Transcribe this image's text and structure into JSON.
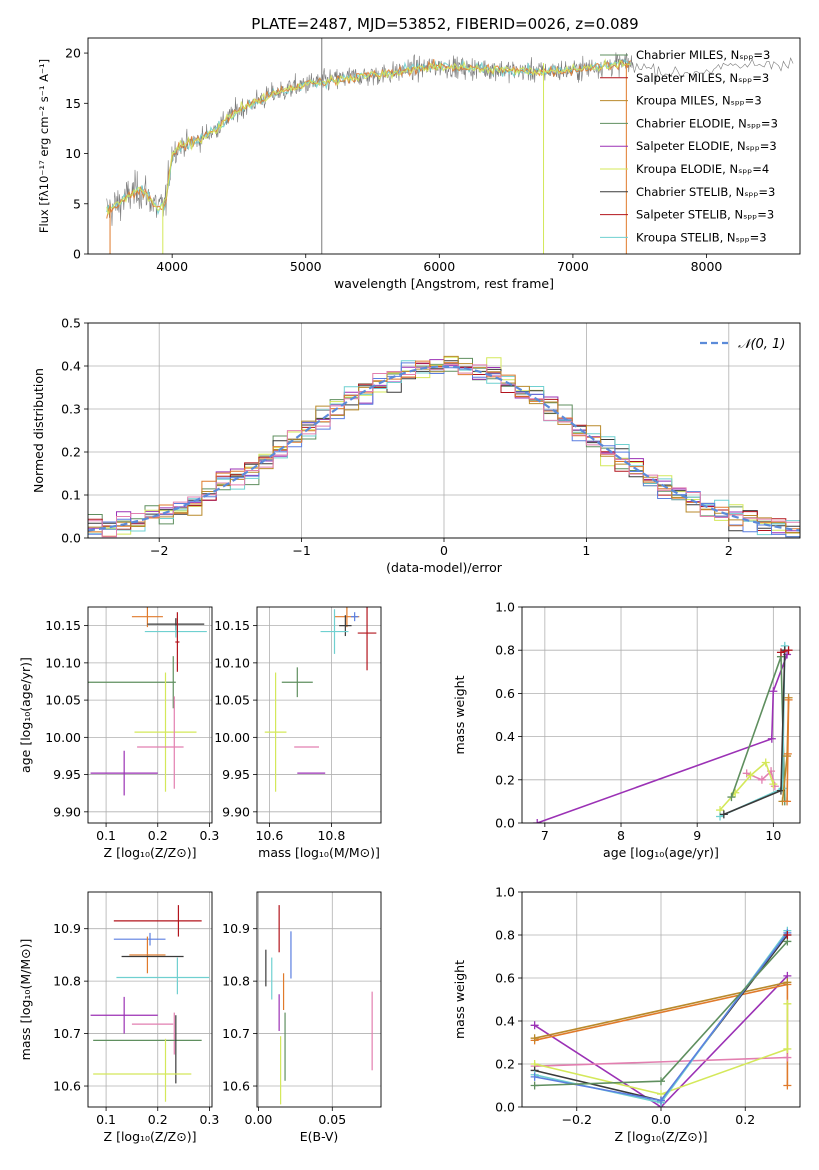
{
  "figure": {
    "title": "PLATE=2487, MJD=53852, FIBERID=0026, z=0.089"
  },
  "model_colors": [
    "#5f8f5f",
    "#9b31b5",
    "#d4e85a",
    "#3a3a3a",
    "#b2141c",
    "#6fd0d0",
    "#5b7fe0",
    "#e07a2b",
    "#b98a2b",
    "#e27fb0"
  ],
  "chart_data": [
    {
      "id": "spectrum",
      "type": "line",
      "xlabel": "wavelength [Angstrom, rest frame]",
      "ylabel": "Flux [fλ10⁻¹⁷ erg cm⁻² s⁻¹ A⁻¹]",
      "xlim": [
        3370,
        8700
      ],
      "ylim": [
        0,
        21.5
      ],
      "xticks": [
        "4000",
        "5000",
        "6000",
        "7000",
        "8000"
      ],
      "yticks": [
        "0",
        "5",
        "10",
        "15",
        "20"
      ],
      "grid": false,
      "legend_position": "top-right",
      "series": [
        {
          "name": "Chabrier MILES, Nₛₚₚ=3",
          "color": "#5f8f5f"
        },
        {
          "name": "Salpeter MILES, Nₛₚₚ=3",
          "color": "#b2141c"
        },
        {
          "name": "Kroupa MILES, Nₛₚₚ=3",
          "color": "#b98a2b"
        },
        {
          "name": "Chabrier ELODIE, Nₛₚₚ=3",
          "color": "#5f8f5f"
        },
        {
          "name": "Salpeter ELODIE, Nₛₚₚ=3",
          "color": "#9b31b5"
        },
        {
          "name": "Kroupa ELODIE, Nₛₚₚ=4",
          "color": "#d4e85a"
        },
        {
          "name": "Chabrier STELIB, Nₛₚₚ=3",
          "color": "#3a3a3a"
        },
        {
          "name": "Salpeter STELIB, Nₛₚₚ=3",
          "color": "#b2141c"
        },
        {
          "name": "Kroupa STELIB, Nₛₚₚ=3",
          "color": "#6fd0d0"
        }
      ],
      "continuum": {
        "x": [
          3500,
          3550,
          3600,
          3650,
          3700,
          3750,
          3800,
          3850,
          3900,
          3950,
          4000,
          4050,
          4100,
          4200,
          4300,
          4400,
          4500,
          4600,
          4700,
          4800,
          4900,
          5000,
          5200,
          5400,
          5600,
          5800,
          6000,
          6200,
          6400,
          6600,
          6800,
          7000,
          7200,
          7400,
          7600,
          7800,
          8000,
          8200,
          8400,
          8600
        ],
        "y": [
          4.2,
          4.6,
          5.0,
          5.5,
          6.0,
          6.3,
          6.2,
          5.2,
          4.5,
          5.0,
          10.0,
          10.6,
          10.9,
          11.4,
          12.2,
          13.3,
          14.4,
          15.0,
          15.6,
          16.1,
          16.5,
          16.9,
          17.3,
          17.7,
          17.9,
          18.4,
          18.7,
          18.5,
          18.4,
          18.2,
          18.2,
          18.3,
          18.7,
          19.0,
          18.4,
          17.9,
          18.3,
          18.6,
          18.9,
          19.1
        ]
      },
      "noise_amplitude": 1.4,
      "vertical_spikes_x": [
        5120,
        6780,
        7400
      ]
    },
    {
      "id": "residuals",
      "type": "histogram",
      "xlabel": "(data-model)/error",
      "ylabel": "Normed distribution",
      "xlim": [
        -2.5,
        2.5
      ],
      "ylim": [
        0,
        0.5
      ],
      "xticks": [
        "−2",
        "−1",
        "0",
        "1",
        "2"
      ],
      "yticks": [
        "0.0",
        "0.1",
        "0.2",
        "0.3",
        "0.4",
        "0.5"
      ],
      "grid": true,
      "bin_width": 0.1,
      "legend_position": "top-right",
      "reference_curve": {
        "name": "𝒩(0, 1)",
        "color": "#5b8bd9",
        "style": "dashed"
      },
      "histogram_count": 10,
      "histogram_jitter": 0.035
    },
    {
      "id": "age_vs_Z",
      "type": "errorbar",
      "xlabel": "Z [log₁₀(Z/Z⊙)]",
      "ylabel": "age  [log₁₀(age/yr)]",
      "xlim": [
        0.065,
        0.305
      ],
      "ylim": [
        9.885,
        10.175
      ],
      "xticks": [
        "0.1",
        "0.2",
        "0.3"
      ],
      "yticks": [
        "9.90",
        "9.95",
        "10.00",
        "10.05",
        "10.10",
        "10.15"
      ],
      "grid": true,
      "points": [
        {
          "x": 0.18,
          "y": 10.162,
          "xerr": 0.03,
          "yerr": 0.014,
          "color": "#e07a2b"
        },
        {
          "x": 0.235,
          "y": 10.152,
          "xerr": 0.055,
          "yerr": 0.008,
          "color": "#3a3a3a"
        },
        {
          "x": 0.235,
          "y": 10.142,
          "xerr": 0.06,
          "yerr": 0.008,
          "color": "#6fd0d0"
        },
        {
          "x": 0.238,
          "y": 10.128,
          "xerr": 0.004,
          "yerr": 0.04,
          "color": "#b2141c"
        },
        {
          "x": 0.14,
          "y": 10.074,
          "xerr": 0.095,
          "yerr": 0.002,
          "color": "#5f8f5f"
        },
        {
          "x": 0.23,
          "y": 10.074,
          "xerr": 0.002,
          "yerr": 0.035,
          "color": "#5f8f5f"
        },
        {
          "x": 0.215,
          "y": 10.007,
          "xerr": 0.06,
          "yerr": 0.08,
          "color": "#d4e85a"
        },
        {
          "x": 0.205,
          "y": 9.987,
          "xerr": 0.045,
          "yerr": 0.002,
          "color": "#e27fb0"
        },
        {
          "x": 0.232,
          "y": 9.993,
          "xerr": 0.002,
          "yerr": 0.062,
          "color": "#e27fb0"
        },
        {
          "x": 0.135,
          "y": 9.952,
          "xerr": 0.065,
          "yerr": 0.03,
          "color": "#9b31b5"
        }
      ]
    },
    {
      "id": "age_vs_mass",
      "type": "errorbar",
      "xlabel": "mass [log₁₀(M/M⊙)]",
      "ylabel": "",
      "xlim": [
        10.56,
        10.96
      ],
      "ylim": [
        9.885,
        10.175
      ],
      "xticks": [
        "10.6",
        "10.8"
      ],
      "yticks": [
        "9.90",
        "9.95",
        "10.00",
        "10.05",
        "10.10",
        "10.15"
      ],
      "grid": true,
      "points": [
        {
          "x": 10.85,
          "y": 10.162,
          "xerr": 0.04,
          "yerr": 0.014,
          "color": "#e07a2b"
        },
        {
          "x": 10.875,
          "y": 10.162,
          "xerr": 0.012,
          "yerr": 0.006,
          "color": "#5b7fe0"
        },
        {
          "x": 10.845,
          "y": 10.15,
          "xerr": 0.02,
          "yerr": 0.014,
          "color": "#3a3a3a"
        },
        {
          "x": 10.81,
          "y": 10.142,
          "xerr": 0.045,
          "yerr": 0.03,
          "color": "#6fd0d0"
        },
        {
          "x": 10.915,
          "y": 10.14,
          "xerr": 0.03,
          "yerr": 0.05,
          "color": "#b2141c"
        },
        {
          "x": 10.69,
          "y": 10.074,
          "xerr": 0.05,
          "yerr": 0.02,
          "color": "#5f8f5f"
        },
        {
          "x": 10.62,
          "y": 10.007,
          "xerr": 0.035,
          "yerr": 0.08,
          "color": "#d4e85a"
        },
        {
          "x": 10.72,
          "y": 9.987,
          "xerr": 0.04,
          "yerr": 0.002,
          "color": "#e27fb0"
        },
        {
          "x": 10.735,
          "y": 9.952,
          "xerr": 0.045,
          "yerr": 0.002,
          "color": "#9b31b5"
        }
      ]
    },
    {
      "id": "weight_vs_age",
      "type": "line",
      "xlabel": "age  [log₁₀(age/yr)]",
      "ylabel": "mass weight",
      "xlim": [
        6.7,
        10.35
      ],
      "ylim": [
        0,
        1.0
      ],
      "xticks": [
        "7",
        "8",
        "9",
        "10"
      ],
      "yticks": [
        "0.0",
        "0.2",
        "0.4",
        "0.6",
        "0.8",
        "1.0"
      ],
      "grid": true,
      "series": [
        {
          "color": "#9b31b5",
          "x": [
            6.9,
            9.98,
            10.0,
            10.18
          ],
          "y": [
            0.0,
            0.39,
            0.61,
            0.78
          ]
        },
        {
          "color": "#e27fb0",
          "x": [
            9.65,
            9.85,
            9.97,
            10.02
          ],
          "y": [
            0.23,
            0.2,
            0.24,
            0.17
          ]
        },
        {
          "color": "#d4e85a",
          "x": [
            9.3,
            9.5,
            9.7,
            9.9,
            10.0
          ],
          "y": [
            0.06,
            0.14,
            0.22,
            0.28,
            0.18
          ]
        },
        {
          "color": "#5f8f5f",
          "x": [
            9.45,
            10.1,
            10.15
          ],
          "y": [
            0.12,
            0.77,
            0.1
          ]
        },
        {
          "color": "#6fd0d0",
          "x": [
            9.3,
            10.12,
            10.15
          ],
          "y": [
            0.03,
            0.16,
            0.82
          ]
        },
        {
          "color": "#3a3a3a",
          "x": [
            9.35,
            10.1,
            10.15
          ],
          "y": [
            0.04,
            0.15,
            0.8
          ]
        },
        {
          "color": "#b98a2b",
          "x": [
            10.12,
            10.18,
            10.2
          ],
          "y": [
            0.1,
            0.31,
            0.58
          ]
        },
        {
          "color": "#e07a2b",
          "x": [
            10.18,
            10.19,
            10.2
          ],
          "y": [
            0.1,
            0.32,
            0.57
          ]
        },
        {
          "color": "#b2141c",
          "x": [
            10.1,
            10.2
          ],
          "y": [
            0.79,
            0.8
          ]
        }
      ]
    },
    {
      "id": "mass_vs_Z",
      "type": "errorbar",
      "xlabel": "Z [log₁₀(Z/Z⊙)]",
      "ylabel": "mass [log₁₀(M/M⊙)]",
      "xlim": [
        0.065,
        0.305
      ],
      "ylim": [
        10.56,
        10.97
      ],
      "xticks": [
        "0.1",
        "0.2",
        "0.3"
      ],
      "yticks": [
        "10.6",
        "10.7",
        "10.8",
        "10.9"
      ],
      "grid": true,
      "points": [
        {
          "x": 0.2,
          "y": 10.915,
          "xerr": 0.085,
          "yerr": 0.002,
          "color": "#b2141c"
        },
        {
          "x": 0.24,
          "y": 10.915,
          "xerr": 0.002,
          "yerr": 0.03,
          "color": "#b2141c"
        },
        {
          "x": 0.165,
          "y": 10.88,
          "xerr": 0.05,
          "yerr": 0.002,
          "color": "#5b7fe0"
        },
        {
          "x": 0.185,
          "y": 10.88,
          "xerr": 0.002,
          "yerr": 0.012,
          "color": "#5b7fe0"
        },
        {
          "x": 0.18,
          "y": 10.85,
          "xerr": 0.035,
          "yerr": 0.035,
          "color": "#e07a2b"
        },
        {
          "x": 0.19,
          "y": 10.847,
          "xerr": 0.06,
          "yerr": 0.002,
          "color": "#3a3a3a"
        },
        {
          "x": 0.21,
          "y": 10.807,
          "xerr": 0.09,
          "yerr": 0.002,
          "color": "#6fd0d0"
        },
        {
          "x": 0.238,
          "y": 10.81,
          "xerr": 0.002,
          "yerr": 0.035,
          "color": "#6fd0d0"
        },
        {
          "x": 0.135,
          "y": 10.735,
          "xerr": 0.065,
          "yerr": 0.035,
          "color": "#9b31b5"
        },
        {
          "x": 0.19,
          "y": 10.718,
          "xerr": 0.04,
          "yerr": 0.002,
          "color": "#e27fb0"
        },
        {
          "x": 0.232,
          "y": 10.7,
          "xerr": 0.002,
          "yerr": 0.04,
          "color": "#e27fb0"
        },
        {
          "x": 0.18,
          "y": 10.687,
          "xerr": 0.105,
          "yerr": 0.002,
          "color": "#5f8f5f"
        },
        {
          "x": 0.235,
          "y": 10.67,
          "xerr": 0.002,
          "yerr": 0.065,
          "color": "#3a3a3a"
        },
        {
          "x": 0.17,
          "y": 10.623,
          "xerr": 0.095,
          "yerr": 0.002,
          "color": "#d4e85a"
        },
        {
          "x": 0.215,
          "y": 10.63,
          "xerr": 0.002,
          "yerr": 0.06,
          "color": "#d4e85a"
        }
      ]
    },
    {
      "id": "mass_vs_ebv",
      "type": "errorbar",
      "xlabel": "E(B-V)",
      "ylabel": "",
      "xlim": [
        -0.001,
        0.083
      ],
      "ylim": [
        10.56,
        10.97
      ],
      "xticks": [
        "0.00",
        "0.05"
      ],
      "yticks": [
        "10.6",
        "10.7",
        "10.8",
        "10.9"
      ],
      "grid": true,
      "points": [
        {
          "x": 0.014,
          "y": 10.9,
          "xerr": 0,
          "yerr": 0.045,
          "color": "#b2141c"
        },
        {
          "x": 0.005,
          "y": 10.825,
          "xerr": 0,
          "yerr": 0.035,
          "color": "#3a3a3a"
        },
        {
          "x": 0.022,
          "y": 10.85,
          "xerr": 0,
          "yerr": 0.045,
          "color": "#5b7fe0"
        },
        {
          "x": 0.009,
          "y": 10.805,
          "xerr": 0,
          "yerr": 0.04,
          "color": "#6fd0d0"
        },
        {
          "x": 0.017,
          "y": 10.78,
          "xerr": 0,
          "yerr": 0.035,
          "color": "#e07a2b"
        },
        {
          "x": 0.014,
          "y": 10.74,
          "xerr": 0,
          "yerr": 0.035,
          "color": "#9b31b5"
        },
        {
          "x": 0.018,
          "y": 10.675,
          "xerr": 0,
          "yerr": 0.065,
          "color": "#5f8f5f"
        },
        {
          "x": 0.015,
          "y": 10.63,
          "xerr": 0,
          "yerr": 0.065,
          "color": "#d4e85a"
        },
        {
          "x": 0.077,
          "y": 10.705,
          "xerr": 0,
          "yerr": 0.075,
          "color": "#e27fb0"
        }
      ]
    },
    {
      "id": "weight_vs_Z",
      "type": "line",
      "xlabel": "Z [log₁₀(Z/Z⊙)]",
      "ylabel": "mass weight",
      "xlim": [
        -0.33,
        0.33
      ],
      "ylim": [
        0,
        1.0
      ],
      "xticks": [
        "−0.2",
        "0.0",
        "0.2"
      ],
      "yticks": [
        "0.0",
        "0.2",
        "0.4",
        "0.6",
        "0.8",
        "1.0"
      ],
      "grid": true,
      "series": [
        {
          "color": "#9b31b5",
          "x": [
            -0.3,
            0.0,
            0.3
          ],
          "y": [
            0.38,
            0.0,
            0.61
          ]
        },
        {
          "color": "#e07a2b",
          "x": [
            -0.3,
            0.3,
            0.3
          ],
          "y": [
            0.31,
            0.57,
            0.1
          ]
        },
        {
          "color": "#b98a2b",
          "x": [
            -0.3,
            0.3
          ],
          "y": [
            0.32,
            0.58
          ]
        },
        {
          "color": "#e27fb0",
          "x": [
            -0.3,
            0.3
          ],
          "y": [
            0.19,
            0.23
          ]
        },
        {
          "color": "#d4e85a",
          "x": [
            -0.3,
            0.0,
            0.3,
            0.3
          ],
          "y": [
            0.2,
            0.06,
            0.27,
            0.48
          ]
        },
        {
          "color": "#3a3a3a",
          "x": [
            -0.3,
            0.0,
            0.3
          ],
          "y": [
            0.17,
            0.03,
            0.8
          ]
        },
        {
          "color": "#6fd0d0",
          "x": [
            -0.3,
            0.0,
            0.3
          ],
          "y": [
            0.15,
            0.02,
            0.82
          ]
        },
        {
          "color": "#5b7fe0",
          "x": [
            -0.3,
            0.0,
            0.3
          ],
          "y": [
            0.14,
            0.03,
            0.81
          ]
        },
        {
          "color": "#5f8f5f",
          "x": [
            -0.3,
            0.0,
            0.3
          ],
          "y": [
            0.1,
            0.12,
            0.77
          ]
        },
        {
          "color": "#b2141c",
          "x": [
            0.3
          ],
          "y": [
            0.8
          ]
        }
      ]
    }
  ]
}
